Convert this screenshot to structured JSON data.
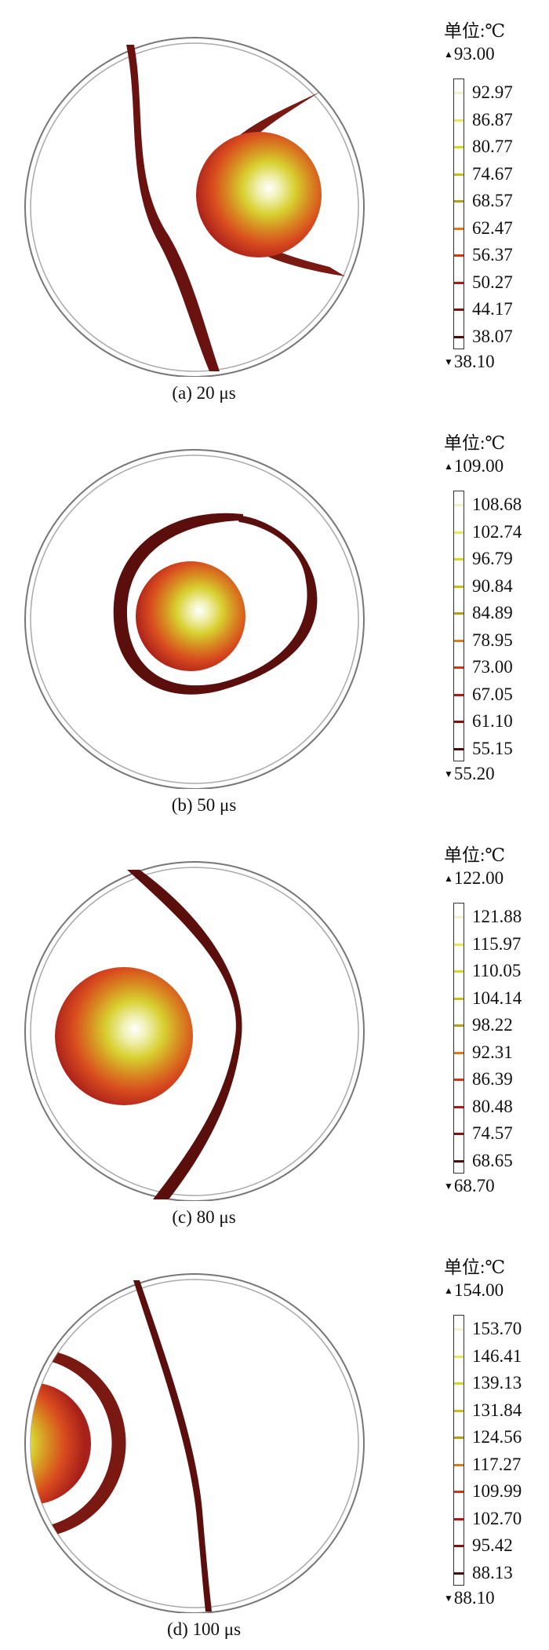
{
  "unit_label": "单位:℃",
  "panels": [
    {
      "caption": "(a)  20 μs",
      "max": "93.00",
      "min": "38.10",
      "ticks": [
        "92.97",
        "86.87",
        "80.77",
        "74.67",
        "68.57",
        "62.47",
        "56.37",
        "50.27",
        "44.17",
        "38.07"
      ]
    },
    {
      "caption": "(b)  50 μs",
      "max": "109.00",
      "min": "55.20",
      "ticks": [
        "108.68",
        "102.74",
        "96.79",
        "90.84",
        "84.89",
        "78.95",
        "73.00",
        "67.05",
        "61.10",
        "55.15"
      ]
    },
    {
      "caption": "(c)  80 μs",
      "max": "122.00",
      "min": "68.70",
      "ticks": [
        "121.88",
        "115.97",
        "110.05",
        "104.14",
        "98.22",
        "92.31",
        "86.39",
        "80.48",
        "74.57",
        "68.65"
      ]
    },
    {
      "caption": "(d)  100 μs",
      "max": "154.00",
      "min": "88.10",
      "ticks": [
        "153.70",
        "146.41",
        "139.13",
        "131.84",
        "124.56",
        "117.27",
        "109.99",
        "102.70",
        "95.42",
        "88.13"
      ]
    }
  ],
  "colors": {
    "tick_colors": [
      "#f2f2c8",
      "#eaea50",
      "#d8d820",
      "#c8c010",
      "#b8a010",
      "#e07a18",
      "#d03818",
      "#b01a14",
      "#801410",
      "#4a0c0a"
    ],
    "band": "#5a0f0c",
    "ring": "#888888"
  }
}
